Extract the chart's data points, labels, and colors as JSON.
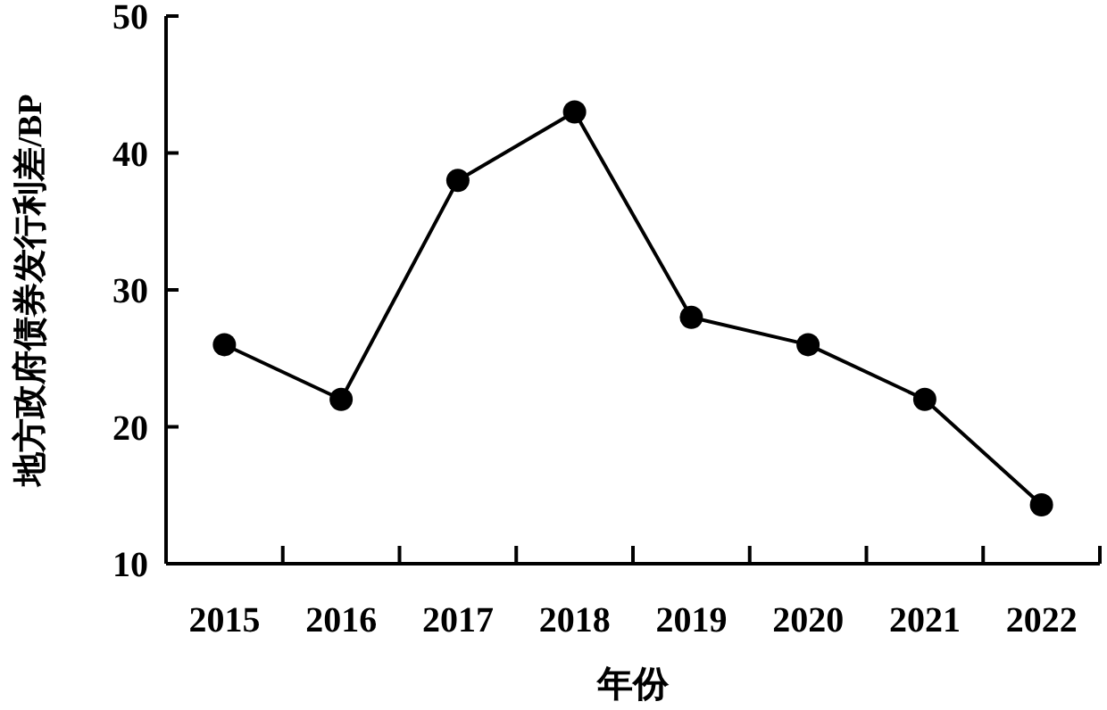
{
  "chart_data": {
    "type": "line",
    "xlabel": "年份",
    "ylabel": "地方政府债券发行利差/BP",
    "categories": [
      "2015",
      "2016",
      "2017",
      "2018",
      "2019",
      "2020",
      "2021",
      "2022"
    ],
    "series": [
      {
        "color": "#000000",
        "values": [
          26,
          22,
          38,
          43,
          28,
          26,
          22,
          14.3
        ]
      }
    ],
    "ylim": [
      10,
      50
    ],
    "yticks": [
      10,
      20,
      30,
      40,
      50
    ],
    "grid": false,
    "marker": "circle",
    "line_style": "solid"
  }
}
